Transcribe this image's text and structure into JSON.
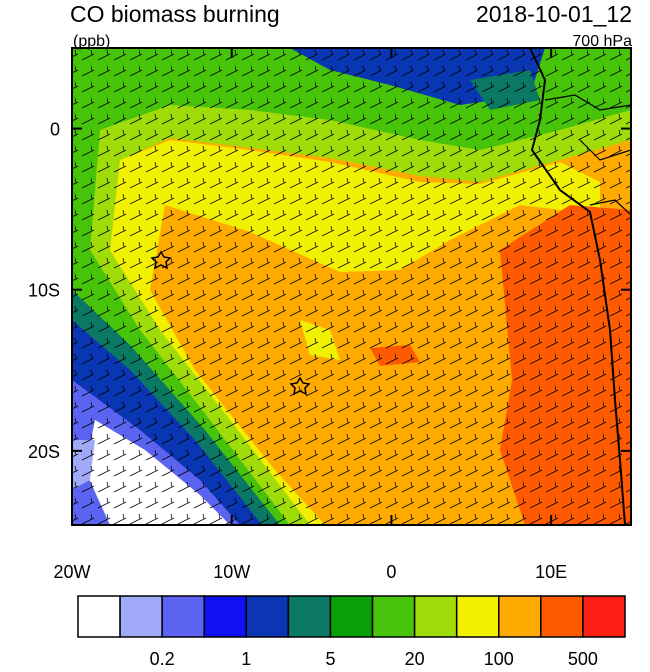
{
  "header": {
    "title": "CO biomass burning",
    "units": "(ppb)",
    "time": "2018-10-01_12",
    "level": "700 hPa"
  },
  "map": {
    "lon_range": [
      -20,
      15
    ],
    "lat_range": [
      -24.6,
      5
    ],
    "lon_ticks": [
      {
        "value": -20,
        "label": "20W"
      },
      {
        "value": -10,
        "label": "10W"
      },
      {
        "value": 0,
        "label": "0"
      },
      {
        "value": 10,
        "label": "10E"
      }
    ],
    "lat_ticks": [
      {
        "value": 0,
        "label": "0"
      },
      {
        "value": -10,
        "label": "10S"
      },
      {
        "value": -20,
        "label": "20S"
      }
    ]
  },
  "colorbar": {
    "colors": [
      "#ffffff",
      "#a0a8f8",
      "#5a64f0",
      "#1010f0",
      "#0a36b4",
      "#0a7864",
      "#0aa00a",
      "#46c30a",
      "#a0dc0a",
      "#f0f000",
      "#ffaa00",
      "#ff5a00",
      "#ff1e14"
    ],
    "labels": [
      "0.2",
      "1",
      "5",
      "20",
      "100",
      "500"
    ]
  }
}
